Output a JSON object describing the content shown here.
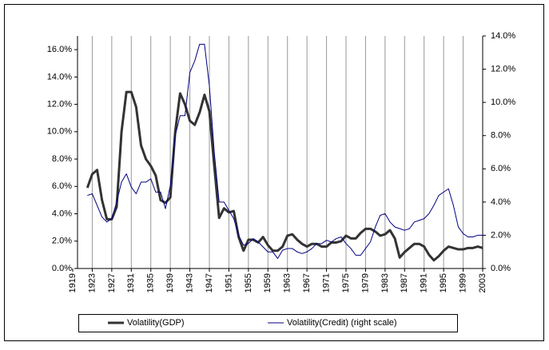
{
  "chart_data": {
    "type": "line",
    "x": [
      1922,
      1923,
      1924,
      1925,
      1926,
      1927,
      1928,
      1929,
      1930,
      1931,
      1932,
      1933,
      1934,
      1935,
      1936,
      1937,
      1938,
      1939,
      1940,
      1941,
      1942,
      1943,
      1944,
      1945,
      1946,
      1947,
      1948,
      1949,
      1950,
      1951,
      1952,
      1953,
      1954,
      1955,
      1956,
      1957,
      1958,
      1959,
      1960,
      1961,
      1962,
      1963,
      1964,
      1965,
      1966,
      1967,
      1968,
      1969,
      1970,
      1971,
      1972,
      1973,
      1974,
      1975,
      1976,
      1977,
      1978,
      1979,
      1980,
      1981,
      1982,
      1983,
      1984,
      1985,
      1986,
      1987,
      1988,
      1989,
      1990,
      1991,
      1992,
      1993,
      1994,
      1995,
      1996,
      1997,
      1998,
      1999,
      2000,
      2001,
      2002,
      2003
    ],
    "series": [
      {
        "name": "Volatility(GDP)",
        "color": "#333333",
        "values": [
          5.9,
          6.9,
          7.2,
          5.0,
          3.6,
          3.6,
          4.5,
          10.0,
          12.9,
          12.9,
          11.8,
          9.0,
          8.0,
          7.5,
          6.8,
          5.0,
          4.8,
          5.2,
          10.0,
          12.8,
          12.0,
          10.8,
          10.5,
          11.4,
          12.7,
          11.5,
          7.5,
          3.7,
          4.4,
          4.1,
          4.2,
          2.3,
          1.3,
          2.1,
          2.1,
          1.9,
          2.3,
          1.7,
          1.3,
          1.3,
          1.6,
          2.4,
          2.5,
          2.1,
          1.8,
          1.6,
          1.8,
          1.8,
          1.6,
          1.6,
          1.9,
          1.9,
          2.0,
          2.4,
          2.2,
          2.2,
          2.6,
          2.9,
          2.9,
          2.7,
          2.4,
          2.5,
          2.8,
          2.2,
          0.8,
          1.2,
          1.5,
          1.8,
          1.8,
          1.6,
          1.0,
          0.6,
          0.9,
          1.3,
          1.6,
          1.5,
          1.4,
          1.4,
          1.5,
          1.5,
          1.6,
          1.5
        ]
      },
      {
        "name": "Volatility(Credit) (right scale)",
        "color": "#000080",
        "axis": "y2",
        "values": [
          4.4,
          4.5,
          3.8,
          3.1,
          2.8,
          3.0,
          4.0,
          5.2,
          5.7,
          4.9,
          4.5,
          5.2,
          5.2,
          5.4,
          4.6,
          4.6,
          3.6,
          5.0,
          8.0,
          9.2,
          9.2,
          11.8,
          12.5,
          13.5,
          13.5,
          11.0,
          7.0,
          4.0,
          4.0,
          3.5,
          3.0,
          2.0,
          1.4,
          1.5,
          1.8,
          1.6,
          1.3,
          1.0,
          1.0,
          0.6,
          1.1,
          1.2,
          1.2,
          1.0,
          0.9,
          1.0,
          1.2,
          1.5,
          1.5,
          1.7,
          1.6,
          1.8,
          1.9,
          1.5,
          1.2,
          0.8,
          0.8,
          1.2,
          1.6,
          2.5,
          3.2,
          3.3,
          2.8,
          2.5,
          2.4,
          2.3,
          2.4,
          2.8,
          2.9,
          3.0,
          3.3,
          3.8,
          4.4,
          4.6,
          4.8,
          3.8,
          2.5,
          2.1,
          1.9,
          1.9,
          2.0,
          2.0
        ]
      }
    ],
    "xlim": [
      1919,
      2003
    ],
    "xticks": [
      1919,
      1923,
      1927,
      1931,
      1935,
      1939,
      1943,
      1947,
      1951,
      1955,
      1959,
      1963,
      1967,
      1971,
      1975,
      1979,
      1983,
      1987,
      1991,
      1995,
      1999,
      2003
    ],
    "ylim": [
      0,
      17
    ],
    "yticks": [
      {
        "value": 0,
        "label": "0.0%"
      },
      {
        "value": 2,
        "label": "2.0%"
      },
      {
        "value": 4,
        "label": "4.0%"
      },
      {
        "value": 6,
        "label": "6.0%"
      },
      {
        "value": 8,
        "label": "8.0%"
      },
      {
        "value": 10,
        "label": "10.0%"
      },
      {
        "value": 12,
        "label": "12.0%"
      },
      {
        "value": 14,
        "label": "14.0%"
      },
      {
        "value": 16,
        "label": "16.0%"
      }
    ],
    "y2lim": [
      0,
      14
    ],
    "y2ticks": [
      {
        "value": 0,
        "label": "0.0%"
      },
      {
        "value": 2,
        "label": "2.0%"
      },
      {
        "value": 4,
        "label": "4.0%"
      },
      {
        "value": 6,
        "label": "6.0%"
      },
      {
        "value": 8,
        "label": "8.0%"
      },
      {
        "value": 10,
        "label": "10.0%"
      },
      {
        "value": 12,
        "label": "12.0%"
      },
      {
        "value": 14,
        "label": "14.0%"
      }
    ],
    "grid": "x",
    "legend": "bottom"
  }
}
